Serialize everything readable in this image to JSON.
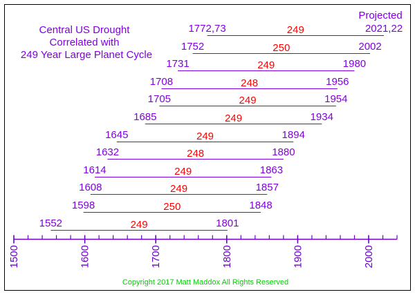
{
  "title_lines": [
    "Central US Drought",
    "Correlated with",
    "249 Year Large Planet Cycle"
  ],
  "projected_label": "Projected",
  "copyright": "Copyright 2017   Matt Maddox   All Rights Reserved",
  "colors": {
    "purple": "#8000e0",
    "red": "#ff0000",
    "green": "#00d000",
    "axis": "#6a00c8",
    "frame": "#000000"
  },
  "chart_data": {
    "type": "timeline",
    "axis": {
      "min": 1500,
      "max": 2040,
      "major_ticks": [
        1500,
        1600,
        1700,
        1800,
        1900,
        2000
      ],
      "tick_labels": [
        "1500",
        "1600",
        "1700",
        "1800",
        "1900",
        "2000"
      ],
      "minor_step": 20
    },
    "intervals": [
      {
        "start_label": "1772,73",
        "end_label": "2021,22",
        "start": 1772.5,
        "end": 2021.5,
        "span": "249",
        "projected": true
      },
      {
        "start_label": "1752",
        "end_label": "2002",
        "start": 1752,
        "end": 2002,
        "span": "250"
      },
      {
        "start_label": "1731",
        "end_label": "1980",
        "start": 1731,
        "end": 1980,
        "span": "249"
      },
      {
        "start_label": "1708",
        "end_label": "1956",
        "start": 1708,
        "end": 1956,
        "span": "248"
      },
      {
        "start_label": "1705",
        "end_label": "1954",
        "start": 1705,
        "end": 1954,
        "span": "249"
      },
      {
        "start_label": "1685",
        "end_label": "1934",
        "start": 1685,
        "end": 1934,
        "span": "249"
      },
      {
        "start_label": "1645",
        "end_label": "1894",
        "start": 1645,
        "end": 1894,
        "span": "249"
      },
      {
        "start_label": "1632",
        "end_label": "1880",
        "start": 1632,
        "end": 1880,
        "span": "248"
      },
      {
        "start_label": "1614",
        "end_label": "1863",
        "start": 1614,
        "end": 1863,
        "span": "249"
      },
      {
        "start_label": "1608",
        "end_label": "1857",
        "start": 1608,
        "end": 1857,
        "span": "249"
      },
      {
        "start_label": "1598",
        "end_label": "1848",
        "start": 1598,
        "end": 1848,
        "span": "250"
      },
      {
        "start_label": "1552",
        "end_label": "1801",
        "start": 1552,
        "end": 1801,
        "span": "249"
      }
    ]
  }
}
